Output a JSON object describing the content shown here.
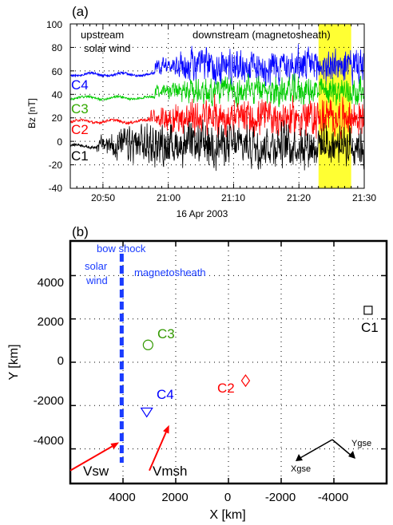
{
  "chart_data": [
    {
      "panel_label": "(a)",
      "type": "line",
      "ylabel": "Bz [nT]",
      "xlabel": "16 Apr 2003",
      "ylim": [
        -40,
        100
      ],
      "xlim": [
        "20:45",
        "21:30"
      ],
      "yticks": [
        -40,
        -20,
        0,
        20,
        40,
        60,
        80,
        100
      ],
      "xticks": [
        "20:50",
        "21:00",
        "21:10",
        "21:20",
        "21:30"
      ],
      "grid": "dotted",
      "highlight": {
        "from": "21:23",
        "to": "21:28",
        "color": "#ffff33"
      },
      "annotations": [
        "upstream",
        "solar wind",
        "downstream (magnetosheath)"
      ],
      "series": [
        {
          "name": "C4",
          "color": "#0000ff",
          "upstream_level": 57,
          "downstream_level": 64,
          "spread": 11,
          "shock_time": "20:58"
        },
        {
          "name": "C3",
          "color": "#00cc00",
          "upstream_level": 37,
          "downstream_level": 43,
          "spread": 9,
          "shock_time": "20:58"
        },
        {
          "name": "C2",
          "color": "#ff0000",
          "upstream_level": 17,
          "downstream_level": 20,
          "spread": 12,
          "shock_time": "20:57"
        },
        {
          "name": "C1",
          "color": "#000000",
          "upstream_level": -4,
          "downstream_level": -3,
          "spread": 13,
          "shock_time": "20:49"
        }
      ]
    },
    {
      "panel_label": "(b)",
      "type": "scatter",
      "xlabel": "X [km]",
      "ylabel": "Y [km]",
      "xlim": [
        6000,
        -6000
      ],
      "ylim": [
        -5600,
        5600
      ],
      "xticks": [
        4000,
        2000,
        0,
        -2000,
        -4000
      ],
      "xtick_labels": [
        "4000",
        "2000",
        "0",
        "-2000",
        "-4000"
      ],
      "yticks": [
        4000,
        2000,
        0,
        -2000,
        -4000
      ],
      "ytick_labels": [
        "4000",
        "2000",
        "0",
        "-2000",
        "-4000"
      ],
      "grid": "dotted",
      "bow_shock": {
        "label": "bow shock",
        "x": 4050,
        "color": "#0000ff"
      },
      "region_labels": [
        "solar",
        "wind",
        "magnetosheath"
      ],
      "spacecraft": [
        {
          "name": "C1",
          "x": -5300,
          "y": 2400,
          "marker": "square",
          "color": "#000000"
        },
        {
          "name": "C2",
          "x": -650,
          "y": -850,
          "marker": "diamond",
          "color": "#ff0000"
        },
        {
          "name": "C3",
          "x": 3050,
          "y": 800,
          "marker": "circle",
          "color": "#339900"
        },
        {
          "name": "C4",
          "x": 3100,
          "y": -2300,
          "marker": "triangle-down",
          "color": "#0000ff"
        }
      ],
      "velocity_arrows": [
        {
          "name": "Vsw",
          "color": "#ff0000",
          "from": [
            6000,
            -5000
          ],
          "to": [
            4150,
            -3700
          ]
        },
        {
          "name": "Vmsh",
          "color": "#ff0000",
          "from": [
            3000,
            -5000
          ],
          "to": [
            2250,
            -2900
          ]
        }
      ],
      "gse_axes": {
        "labels": [
          "Xgse",
          "Ygse"
        ],
        "color": "#000000"
      }
    }
  ]
}
